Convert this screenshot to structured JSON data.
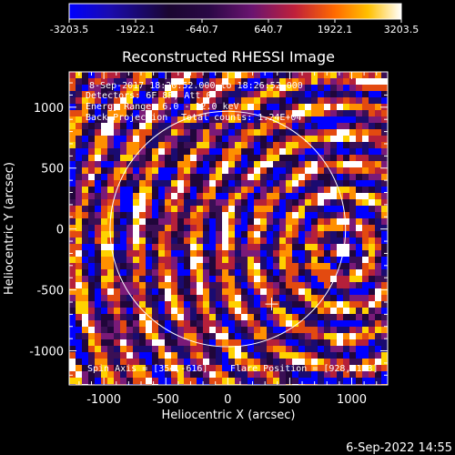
{
  "chart_data": {
    "type": "heatmap",
    "title": "Reconstructed RHESSI Image",
    "xlabel": "Heliocentric X (arcsec)",
    "ylabel": "Heliocentric Y (arcsec)",
    "xlim": [
      -1280,
      1290
    ],
    "ylim": [
      -1280,
      1290
    ],
    "xticks": [
      -1000,
      -500,
      0,
      500,
      1000
    ],
    "yticks": [
      -1000,
      -500,
      0,
      500,
      1000
    ],
    "grid": false,
    "colorbar": {
      "range": [
        -3203.5,
        3203.5
      ],
      "tick_labels": [
        "-3203.5",
        "-1922.1",
        "-640.7",
        "640.7",
        "1922.1",
        "3203.5"
      ],
      "colormap": [
        "#0000ff",
        "#1a0b70",
        "#20063a",
        "#3a0f55",
        "#7a1a78",
        "#b5203a",
        "#e34a10",
        "#ff9000",
        "#ffd200",
        "#ffffff"
      ]
    },
    "solar_limb": {
      "center": [
        0,
        0
      ],
      "radius_arcsec": 950
    },
    "flare_marker": {
      "x": 354,
      "y": -616
    },
    "source": {
      "x": 928,
      "y": -183
    },
    "annotations": {
      "time_range": "8-Sep-2017 18:20:52.000 to 18:26:52.000",
      "detectors": "Detectors: 6F 8F, Att 0",
      "energy": "Energy Range: 6.0 - 12.0 keV",
      "method": "Back Projection",
      "counts": "Total counts: 1.24E+04",
      "spin_axis": "Spin Axis = [354,-616]",
      "flare_position": "Flare Position = [928,-183]"
    }
  },
  "footer": {
    "date": "6-Sep-2022 14:55"
  }
}
